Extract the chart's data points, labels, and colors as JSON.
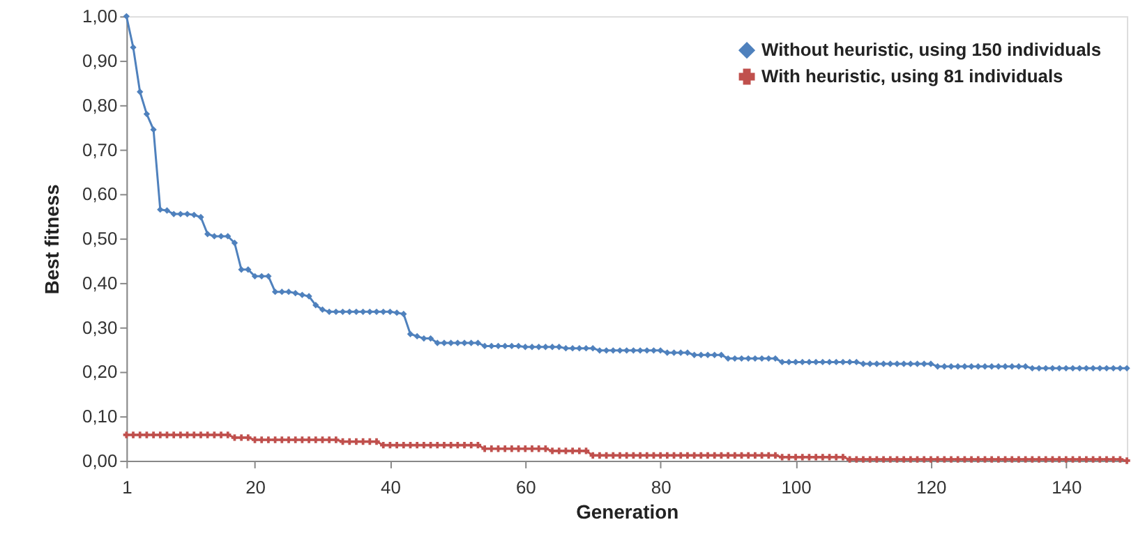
{
  "chart_data": {
    "type": "line",
    "xlabel": "Generation",
    "ylabel": "Best fitness",
    "x": [
      1,
      2,
      3,
      4,
      5,
      6,
      7,
      8,
      9,
      10,
      11,
      12,
      13,
      14,
      15,
      16,
      17,
      18,
      19,
      20,
      21,
      22,
      23,
      24,
      25,
      26,
      27,
      28,
      29,
      30,
      31,
      32,
      33,
      34,
      35,
      36,
      37,
      38,
      39,
      40,
      41,
      42,
      43,
      44,
      45,
      46,
      47,
      48,
      49,
      50,
      51,
      52,
      53,
      54,
      55,
      56,
      57,
      58,
      59,
      60,
      61,
      62,
      63,
      64,
      65,
      66,
      67,
      68,
      69,
      70,
      71,
      72,
      73,
      74,
      75,
      76,
      77,
      78,
      79,
      80,
      81,
      82,
      83,
      84,
      85,
      86,
      87,
      88,
      89,
      90,
      91,
      92,
      93,
      94,
      95,
      96,
      97,
      98,
      99,
      100,
      101,
      102,
      103,
      104,
      105,
      106,
      107,
      108,
      109,
      110,
      111,
      112,
      113,
      114,
      115,
      116,
      117,
      118,
      119,
      120,
      121,
      122,
      123,
      124,
      125,
      126,
      127,
      128,
      129,
      130,
      131,
      132,
      133,
      134,
      135,
      136,
      137,
      138,
      139,
      140,
      141,
      142,
      143,
      144,
      145,
      146,
      147,
      148,
      149
    ],
    "series": [
      {
        "name": "Without heuristic, using 150 individuals",
        "color": "#4f81bd",
        "marker": "diamond",
        "values": [
          1.0,
          0.93,
          0.83,
          0.78,
          0.745,
          0.565,
          0.563,
          0.555,
          0.555,
          0.555,
          0.553,
          0.548,
          0.51,
          0.505,
          0.505,
          0.505,
          0.49,
          0.43,
          0.43,
          0.415,
          0.415,
          0.415,
          0.38,
          0.38,
          0.38,
          0.377,
          0.373,
          0.37,
          0.35,
          0.34,
          0.335,
          0.335,
          0.335,
          0.335,
          0.335,
          0.335,
          0.335,
          0.335,
          0.335,
          0.335,
          0.333,
          0.33,
          0.285,
          0.28,
          0.275,
          0.275,
          0.265,
          0.265,
          0.265,
          0.265,
          0.265,
          0.265,
          0.265,
          0.258,
          0.258,
          0.258,
          0.258,
          0.258,
          0.258,
          0.256,
          0.256,
          0.256,
          0.256,
          0.256,
          0.256,
          0.253,
          0.253,
          0.253,
          0.253,
          0.253,
          0.248,
          0.248,
          0.248,
          0.248,
          0.248,
          0.248,
          0.248,
          0.248,
          0.248,
          0.248,
          0.243,
          0.243,
          0.243,
          0.243,
          0.238,
          0.238,
          0.238,
          0.238,
          0.238,
          0.23,
          0.23,
          0.23,
          0.23,
          0.23,
          0.23,
          0.23,
          0.23,
          0.222,
          0.222,
          0.222,
          0.222,
          0.222,
          0.222,
          0.222,
          0.222,
          0.222,
          0.222,
          0.222,
          0.222,
          0.218,
          0.218,
          0.218,
          0.218,
          0.218,
          0.218,
          0.218,
          0.218,
          0.218,
          0.218,
          0.218,
          0.212,
          0.212,
          0.212,
          0.212,
          0.212,
          0.212,
          0.212,
          0.212,
          0.212,
          0.212,
          0.212,
          0.212,
          0.212,
          0.212,
          0.208,
          0.208,
          0.208,
          0.208,
          0.208,
          0.208,
          0.208,
          0.208,
          0.208,
          0.208,
          0.208,
          0.208,
          0.208,
          0.208,
          0.208
        ]
      },
      {
        "name": "With heuristic, using 81 individuals",
        "color": "#c0504d",
        "marker": "cross",
        "values": [
          0.058,
          0.058,
          0.058,
          0.058,
          0.058,
          0.058,
          0.058,
          0.058,
          0.058,
          0.058,
          0.058,
          0.058,
          0.058,
          0.058,
          0.058,
          0.058,
          0.052,
          0.052,
          0.052,
          0.047,
          0.047,
          0.047,
          0.047,
          0.047,
          0.047,
          0.047,
          0.047,
          0.047,
          0.047,
          0.047,
          0.047,
          0.047,
          0.043,
          0.043,
          0.043,
          0.043,
          0.043,
          0.043,
          0.035,
          0.035,
          0.035,
          0.035,
          0.035,
          0.035,
          0.035,
          0.035,
          0.035,
          0.035,
          0.035,
          0.035,
          0.035,
          0.035,
          0.035,
          0.027,
          0.027,
          0.027,
          0.027,
          0.027,
          0.027,
          0.027,
          0.027,
          0.027,
          0.027,
          0.022,
          0.022,
          0.022,
          0.022,
          0.022,
          0.022,
          0.012,
          0.012,
          0.012,
          0.012,
          0.012,
          0.012,
          0.012,
          0.012,
          0.012,
          0.012,
          0.012,
          0.012,
          0.012,
          0.012,
          0.012,
          0.012,
          0.012,
          0.012,
          0.012,
          0.012,
          0.012,
          0.012,
          0.012,
          0.012,
          0.012,
          0.012,
          0.012,
          0.012,
          0.008,
          0.008,
          0.008,
          0.008,
          0.008,
          0.008,
          0.008,
          0.008,
          0.008,
          0.008,
          0.003,
          0.003,
          0.003,
          0.003,
          0.003,
          0.003,
          0.003,
          0.003,
          0.003,
          0.003,
          0.003,
          0.003,
          0.003,
          0.003,
          0.003,
          0.003,
          0.003,
          0.003,
          0.003,
          0.003,
          0.003,
          0.003,
          0.003,
          0.003,
          0.003,
          0.003,
          0.003,
          0.003,
          0.003,
          0.003,
          0.003,
          0.003,
          0.003,
          0.003,
          0.003,
          0.003,
          0.003,
          0.003,
          0.003,
          0.003,
          0.003,
          0.0
        ]
      }
    ],
    "xlim": [
      1,
      149
    ],
    "xticks": [
      1,
      20,
      40,
      60,
      80,
      100,
      120,
      140
    ],
    "ylim": [
      0,
      1
    ],
    "yticks": [
      {
        "value": 0,
        "label": "0,00"
      },
      {
        "value": 0.1,
        "label": "0,10"
      },
      {
        "value": 0.2,
        "label": "0,20"
      },
      {
        "value": 0.3,
        "label": "0,30"
      },
      {
        "value": 0.4,
        "label": "0,40"
      },
      {
        "value": 0.5,
        "label": "0,50"
      },
      {
        "value": 0.6,
        "label": "0,60"
      },
      {
        "value": 0.7,
        "label": "0,70"
      },
      {
        "value": 0.8,
        "label": "0,80"
      },
      {
        "value": 0.9,
        "label": "0,90"
      },
      {
        "value": 1,
        "label": "1,00"
      }
    ],
    "grid": false,
    "legend": "top right",
    "line_style": "solid"
  }
}
